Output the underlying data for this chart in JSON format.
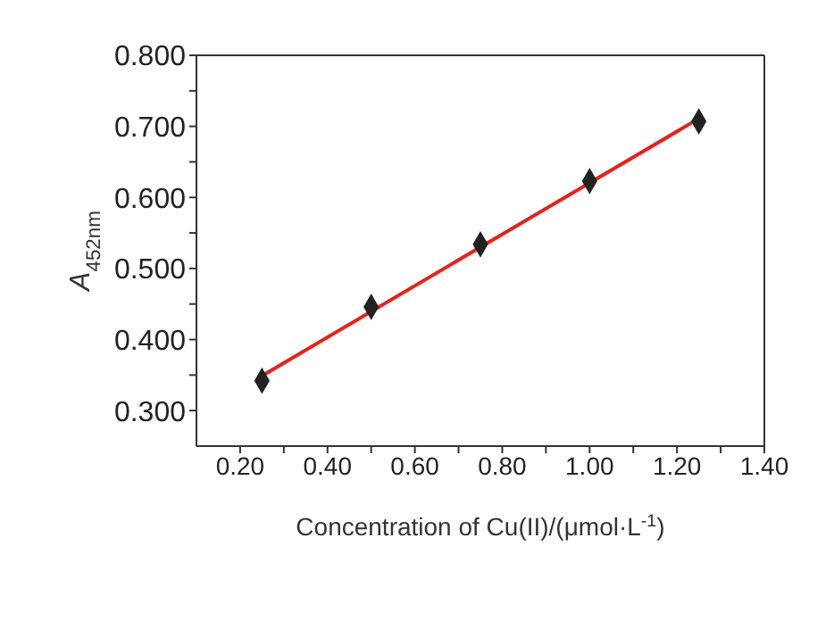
{
  "chart_data": {
    "type": "scatter",
    "xlabel": "Concentration of Cu(II)/(μmol·L$^{-1}$)",
    "ylabel": "A$_{452nm}$",
    "xlim": [
      0.1,
      1.4
    ],
    "xticks": [
      {
        "value": 0.2,
        "label": "0.20"
      },
      {
        "value": 0.3,
        "label": null
      },
      {
        "value": 0.4,
        "label": "0.40"
      },
      {
        "value": 0.5,
        "label": null
      },
      {
        "value": 0.6,
        "label": "0.60"
      },
      {
        "value": 0.7,
        "label": null
      },
      {
        "value": 0.8,
        "label": "0.80"
      },
      {
        "value": 0.9,
        "label": null
      },
      {
        "value": 1.0,
        "label": "1.00"
      },
      {
        "value": 1.1,
        "label": null
      },
      {
        "value": 1.2,
        "label": "1.20"
      },
      {
        "value": 1.3,
        "label": null
      },
      {
        "value": 1.4,
        "label": "1.40"
      }
    ],
    "ylim": [
      0.25,
      0.8
    ],
    "yticks": [
      {
        "value": 0.3,
        "label": "0.300"
      },
      {
        "value": 0.35,
        "label": null
      },
      {
        "value": 0.4,
        "label": "0.400"
      },
      {
        "value": 0.45,
        "label": null
      },
      {
        "value": 0.5,
        "label": "0.500"
      },
      {
        "value": 0.55,
        "label": null
      },
      {
        "value": 0.6,
        "label": "0.600"
      },
      {
        "value": 0.65,
        "label": null
      },
      {
        "value": 0.7,
        "label": "0.700"
      },
      {
        "value": 0.75,
        "label": null
      },
      {
        "value": 0.8,
        "label": "0.800"
      }
    ],
    "x": [
      0.25,
      0.5,
      0.75,
      1.0,
      1.25
    ],
    "series": [
      {
        "type": "scatter",
        "color": "#222222",
        "marker": "diamond",
        "values": [
          0.342,
          0.446,
          0.534,
          0.623,
          0.707
        ]
      },
      {
        "type": "line",
        "color": "#e8211b",
        "marker": "none",
        "line_style": "solid",
        "x": [
          0.25,
          1.25
        ],
        "values": [
          0.349,
          0.711
        ]
      }
    ]
  }
}
